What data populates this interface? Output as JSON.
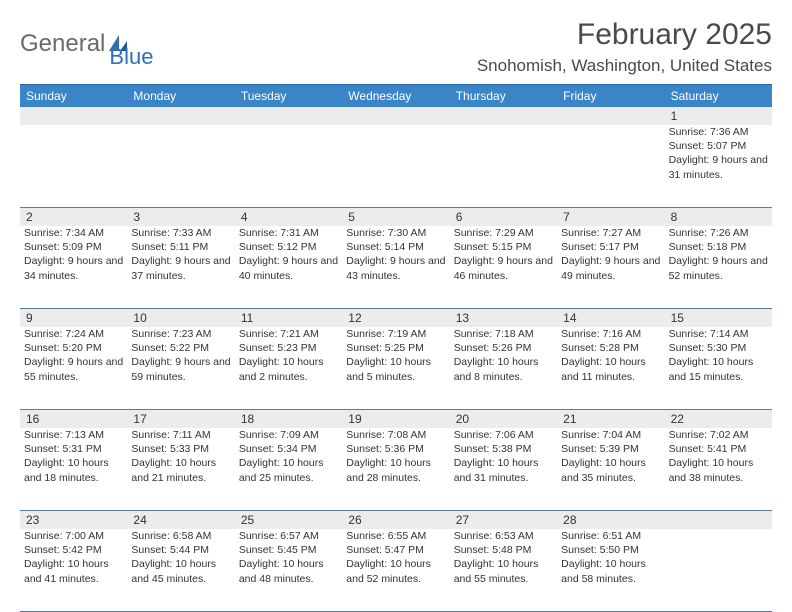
{
  "logo": {
    "word1": "General",
    "word2": "Blue"
  },
  "title": "February 2025",
  "location": "Snohomish, Washington, United States",
  "colors": {
    "header_bg": "#3a85c8",
    "header_text": "#ffffff",
    "daynum_bg": "#ececec",
    "week_border": "#5a7ba3",
    "body_text": "#333333",
    "title_text": "#4a4a4a",
    "logo_gray": "#6a6a6a",
    "logo_blue": "#2f6fb5"
  },
  "day_names": [
    "Sunday",
    "Monday",
    "Tuesday",
    "Wednesday",
    "Thursday",
    "Friday",
    "Saturday"
  ],
  "weeks": [
    [
      {
        "n": "",
        "sr": "",
        "ss": "",
        "dl": ""
      },
      {
        "n": "",
        "sr": "",
        "ss": "",
        "dl": ""
      },
      {
        "n": "",
        "sr": "",
        "ss": "",
        "dl": ""
      },
      {
        "n": "",
        "sr": "",
        "ss": "",
        "dl": ""
      },
      {
        "n": "",
        "sr": "",
        "ss": "",
        "dl": ""
      },
      {
        "n": "",
        "sr": "",
        "ss": "",
        "dl": ""
      },
      {
        "n": "1",
        "sr": "Sunrise: 7:36 AM",
        "ss": "Sunset: 5:07 PM",
        "dl": "Daylight: 9 hours and 31 minutes."
      }
    ],
    [
      {
        "n": "2",
        "sr": "Sunrise: 7:34 AM",
        "ss": "Sunset: 5:09 PM",
        "dl": "Daylight: 9 hours and 34 minutes."
      },
      {
        "n": "3",
        "sr": "Sunrise: 7:33 AM",
        "ss": "Sunset: 5:11 PM",
        "dl": "Daylight: 9 hours and 37 minutes."
      },
      {
        "n": "4",
        "sr": "Sunrise: 7:31 AM",
        "ss": "Sunset: 5:12 PM",
        "dl": "Daylight: 9 hours and 40 minutes."
      },
      {
        "n": "5",
        "sr": "Sunrise: 7:30 AM",
        "ss": "Sunset: 5:14 PM",
        "dl": "Daylight: 9 hours and 43 minutes."
      },
      {
        "n": "6",
        "sr": "Sunrise: 7:29 AM",
        "ss": "Sunset: 5:15 PM",
        "dl": "Daylight: 9 hours and 46 minutes."
      },
      {
        "n": "7",
        "sr": "Sunrise: 7:27 AM",
        "ss": "Sunset: 5:17 PM",
        "dl": "Daylight: 9 hours and 49 minutes."
      },
      {
        "n": "8",
        "sr": "Sunrise: 7:26 AM",
        "ss": "Sunset: 5:18 PM",
        "dl": "Daylight: 9 hours and 52 minutes."
      }
    ],
    [
      {
        "n": "9",
        "sr": "Sunrise: 7:24 AM",
        "ss": "Sunset: 5:20 PM",
        "dl": "Daylight: 9 hours and 55 minutes."
      },
      {
        "n": "10",
        "sr": "Sunrise: 7:23 AM",
        "ss": "Sunset: 5:22 PM",
        "dl": "Daylight: 9 hours and 59 minutes."
      },
      {
        "n": "11",
        "sr": "Sunrise: 7:21 AM",
        "ss": "Sunset: 5:23 PM",
        "dl": "Daylight: 10 hours and 2 minutes."
      },
      {
        "n": "12",
        "sr": "Sunrise: 7:19 AM",
        "ss": "Sunset: 5:25 PM",
        "dl": "Daylight: 10 hours and 5 minutes."
      },
      {
        "n": "13",
        "sr": "Sunrise: 7:18 AM",
        "ss": "Sunset: 5:26 PM",
        "dl": "Daylight: 10 hours and 8 minutes."
      },
      {
        "n": "14",
        "sr": "Sunrise: 7:16 AM",
        "ss": "Sunset: 5:28 PM",
        "dl": "Daylight: 10 hours and 11 minutes."
      },
      {
        "n": "15",
        "sr": "Sunrise: 7:14 AM",
        "ss": "Sunset: 5:30 PM",
        "dl": "Daylight: 10 hours and 15 minutes."
      }
    ],
    [
      {
        "n": "16",
        "sr": "Sunrise: 7:13 AM",
        "ss": "Sunset: 5:31 PM",
        "dl": "Daylight: 10 hours and 18 minutes."
      },
      {
        "n": "17",
        "sr": "Sunrise: 7:11 AM",
        "ss": "Sunset: 5:33 PM",
        "dl": "Daylight: 10 hours and 21 minutes."
      },
      {
        "n": "18",
        "sr": "Sunrise: 7:09 AM",
        "ss": "Sunset: 5:34 PM",
        "dl": "Daylight: 10 hours and 25 minutes."
      },
      {
        "n": "19",
        "sr": "Sunrise: 7:08 AM",
        "ss": "Sunset: 5:36 PM",
        "dl": "Daylight: 10 hours and 28 minutes."
      },
      {
        "n": "20",
        "sr": "Sunrise: 7:06 AM",
        "ss": "Sunset: 5:38 PM",
        "dl": "Daylight: 10 hours and 31 minutes."
      },
      {
        "n": "21",
        "sr": "Sunrise: 7:04 AM",
        "ss": "Sunset: 5:39 PM",
        "dl": "Daylight: 10 hours and 35 minutes."
      },
      {
        "n": "22",
        "sr": "Sunrise: 7:02 AM",
        "ss": "Sunset: 5:41 PM",
        "dl": "Daylight: 10 hours and 38 minutes."
      }
    ],
    [
      {
        "n": "23",
        "sr": "Sunrise: 7:00 AM",
        "ss": "Sunset: 5:42 PM",
        "dl": "Daylight: 10 hours and 41 minutes."
      },
      {
        "n": "24",
        "sr": "Sunrise: 6:58 AM",
        "ss": "Sunset: 5:44 PM",
        "dl": "Daylight: 10 hours and 45 minutes."
      },
      {
        "n": "25",
        "sr": "Sunrise: 6:57 AM",
        "ss": "Sunset: 5:45 PM",
        "dl": "Daylight: 10 hours and 48 minutes."
      },
      {
        "n": "26",
        "sr": "Sunrise: 6:55 AM",
        "ss": "Sunset: 5:47 PM",
        "dl": "Daylight: 10 hours and 52 minutes."
      },
      {
        "n": "27",
        "sr": "Sunrise: 6:53 AM",
        "ss": "Sunset: 5:48 PM",
        "dl": "Daylight: 10 hours and 55 minutes."
      },
      {
        "n": "28",
        "sr": "Sunrise: 6:51 AM",
        "ss": "Sunset: 5:50 PM",
        "dl": "Daylight: 10 hours and 58 minutes."
      },
      {
        "n": "",
        "sr": "",
        "ss": "",
        "dl": ""
      }
    ]
  ]
}
